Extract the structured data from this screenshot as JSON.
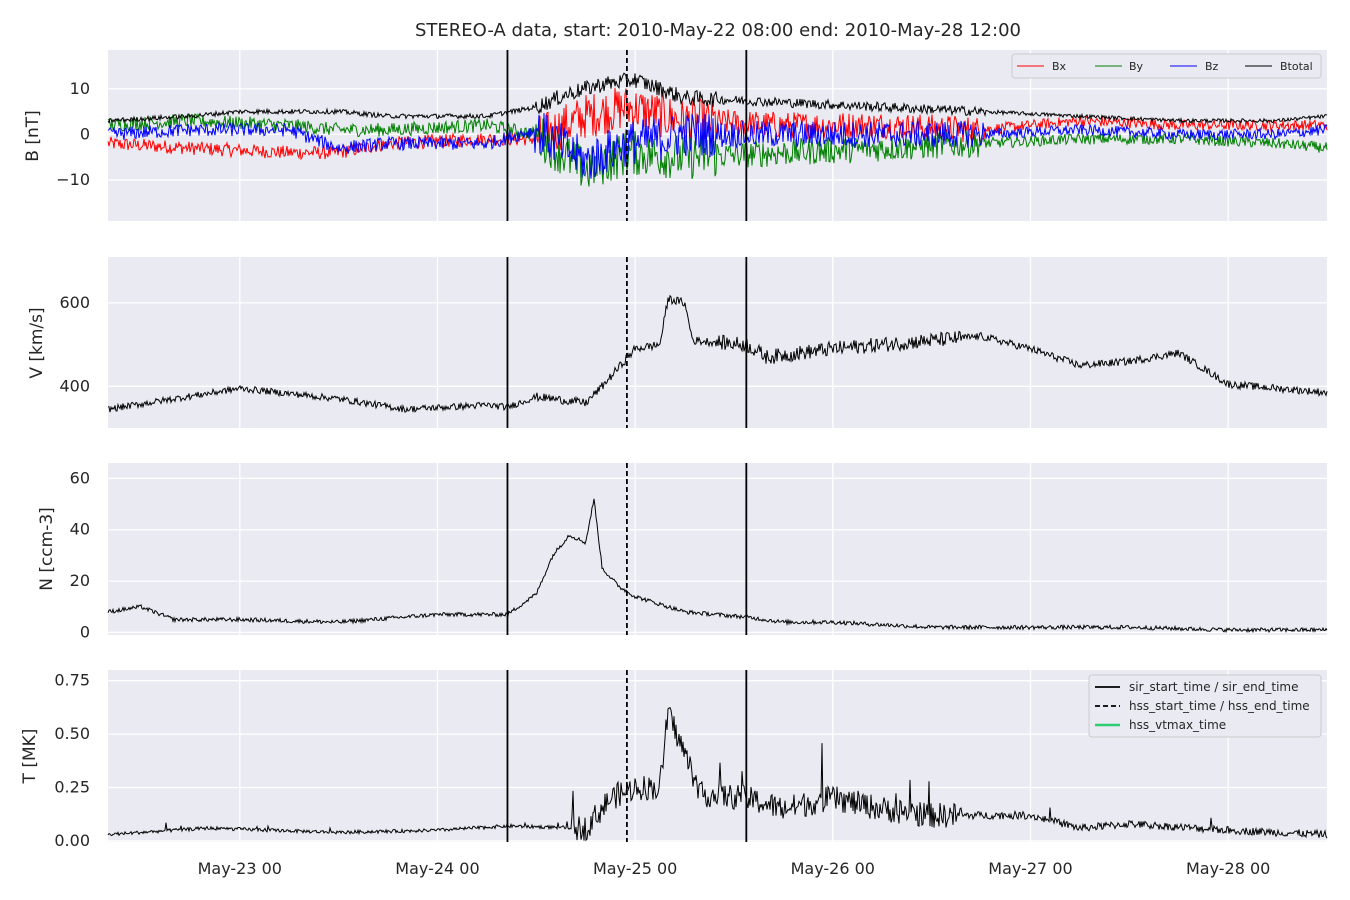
{
  "chart_data": {
    "type": "line",
    "title": "STEREO-A data, start: 2010-May-22 08:00  end: 2010-May-28 12:00",
    "x_axis": {
      "start": "2010-05-22T08:00",
      "end": "2010-05-28T12:00",
      "tick_labels": [
        "May-23 00",
        "May-24 00",
        "May-25 00",
        "May-26 00",
        "May-27 00",
        "May-28 00"
      ],
      "tick_times": [
        "2010-05-23T00:00",
        "2010-05-24T00:00",
        "2010-05-25T00:00",
        "2010-05-26T00:00",
        "2010-05-27T00:00",
        "2010-05-28T00:00"
      ]
    },
    "event_lines": {
      "sir_start_time": "2010-05-24T08:30",
      "hss_start_time": "2010-05-24T23:00",
      "sir_end_time": "2010-05-25T13:30"
    },
    "grid": true,
    "panels": [
      {
        "id": "B",
        "ylabel": "B [nT]",
        "ylim": [
          -19,
          18.5
        ],
        "yticks": [
          {
            "v": -10,
            "label": "−10"
          },
          {
            "v": 0,
            "label": "0"
          },
          {
            "v": 10,
            "label": "10"
          }
        ],
        "legend": {
          "placement": "top-right",
          "ncol": 4
        },
        "series": [
          {
            "name": "Bx",
            "color": "#ff0000",
            "x": [
              "2010-05-22T08:00",
              "2010-05-22T18:00",
              "2010-05-23T06:00",
              "2010-05-23T12:00",
              "2010-05-23T18:00",
              "2010-05-24T06:00",
              "2010-05-24T12:00",
              "2010-05-24T18:00",
              "2010-05-24T23:00",
              "2010-05-25T06:00",
              "2010-05-25T18:00",
              "2010-05-26T06:00",
              "2010-05-26T18:00",
              "2010-05-27T06:00",
              "2010-05-27T18:00",
              "2010-05-28T06:00",
              "2010-05-28T12:00"
            ],
            "y": [
              -2,
              -3,
              -4,
              -4,
              -2,
              -1,
              -1,
              4,
              6,
              3,
              2,
              2,
              1,
              3,
              2,
              2,
              2
            ]
          },
          {
            "name": "By",
            "color": "#008000",
            "x": [
              "2010-05-22T08:00",
              "2010-05-22T18:00",
              "2010-05-23T06:00",
              "2010-05-23T12:00",
              "2010-05-23T18:00",
              "2010-05-24T06:00",
              "2010-05-24T12:00",
              "2010-05-24T18:00",
              "2010-05-24T23:00",
              "2010-05-25T06:00",
              "2010-05-25T18:00",
              "2010-05-26T06:00",
              "2010-05-26T18:00",
              "2010-05-27T06:00",
              "2010-05-27T18:00",
              "2010-05-28T06:00",
              "2010-05-28T12:00"
            ],
            "y": [
              2,
              3,
              2,
              1,
              1,
              2,
              0,
              -8,
              -4,
              -5,
              -4,
              -3,
              -2,
              -1,
              -1,
              -2,
              -3
            ]
          },
          {
            "name": "Bz",
            "color": "#0000ff",
            "x": [
              "2010-05-22T08:00",
              "2010-05-22T18:00",
              "2010-05-23T06:00",
              "2010-05-23T12:00",
              "2010-05-23T18:00",
              "2010-05-24T06:00",
              "2010-05-24T12:00",
              "2010-05-24T18:00",
              "2010-05-24T23:00",
              "2010-05-25T06:00",
              "2010-05-25T18:00",
              "2010-05-26T06:00",
              "2010-05-26T18:00",
              "2010-05-27T06:00",
              "2010-05-27T18:00",
              "2010-05-28T06:00",
              "2010-05-28T12:00"
            ],
            "y": [
              0,
              1,
              1,
              -3,
              -2,
              -2,
              1,
              -6,
              -2,
              0,
              0,
              0,
              0,
              1,
              0,
              0,
              1
            ]
          },
          {
            "name": "Btotal",
            "color": "#000000",
            "x": [
              "2010-05-22T08:00",
              "2010-05-22T18:00",
              "2010-05-23T00:00",
              "2010-05-23T06:00",
              "2010-05-23T12:00",
              "2010-05-23T18:00",
              "2010-05-24T06:00",
              "2010-05-24T12:00",
              "2010-05-24T16:00",
              "2010-05-24T20:00",
              "2010-05-25T00:00",
              "2010-05-25T06:00",
              "2010-05-25T18:00",
              "2010-05-26T06:00",
              "2010-05-26T18:00",
              "2010-05-27T06:00",
              "2010-05-27T18:00",
              "2010-05-28T06:00",
              "2010-05-28T12:00"
            ],
            "y": [
              3,
              4,
              5,
              5,
              5,
              4,
              4,
              6,
              9,
              11,
              12,
              8,
              7,
              6,
              5,
              4,
              3,
              3,
              4
            ]
          }
        ]
      },
      {
        "id": "V",
        "ylabel": "V [km/s]",
        "ylim": [
          300,
          710
        ],
        "yticks": [
          {
            "v": 400,
            "label": "400"
          },
          {
            "v": 600,
            "label": "600"
          }
        ],
        "series": [
          {
            "name": "",
            "color": "#000000",
            "x": [
              "2010-05-22T08:00",
              "2010-05-22T16:00",
              "2010-05-23T00:00",
              "2010-05-23T12:00",
              "2010-05-23T20:00",
              "2010-05-24T06:00",
              "2010-05-24T08:30",
              "2010-05-24T12:00",
              "2010-05-24T18:00",
              "2010-05-24T20:00",
              "2010-05-25T00:00",
              "2010-05-25T03:00",
              "2010-05-25T04:00",
              "2010-05-25T06:00",
              "2010-05-25T07:00",
              "2010-05-25T13:30",
              "2010-05-25T16:00",
              "2010-05-26T00:00",
              "2010-05-26T12:00",
              "2010-05-26T18:00",
              "2010-05-27T00:00",
              "2010-05-27T06:00",
              "2010-05-27T12:00",
              "2010-05-27T18:00",
              "2010-05-27T22:00",
              "2010-05-28T00:00",
              "2010-05-28T12:00"
            ],
            "y": [
              345,
              370,
              395,
              370,
              345,
              355,
              350,
              375,
              360,
              400,
              490,
              500,
              610,
              600,
              510,
              500,
              470,
              490,
              510,
              520,
              490,
              450,
              460,
              480,
              430,
              405,
              385
            ]
          }
        ]
      },
      {
        "id": "N",
        "ylabel": "N [ccm-3]",
        "ylim": [
          -1,
          66
        ],
        "yticks": [
          {
            "v": 0,
            "label": "0"
          },
          {
            "v": 20,
            "label": "20"
          },
          {
            "v": 40,
            "label": "40"
          },
          {
            "v": 60,
            "label": "60"
          }
        ],
        "series": [
          {
            "name": "",
            "color": "#000000",
            "x": [
              "2010-05-22T08:00",
              "2010-05-22T12:00",
              "2010-05-22T16:00",
              "2010-05-23T00:00",
              "2010-05-23T12:00",
              "2010-05-24T00:00",
              "2010-05-24T08:30",
              "2010-05-24T12:00",
              "2010-05-24T14:00",
              "2010-05-24T16:00",
              "2010-05-24T18:00",
              "2010-05-24T19:00",
              "2010-05-24T20:00",
              "2010-05-24T22:00",
              "2010-05-25T00:00",
              "2010-05-25T06:00",
              "2010-05-25T13:30",
              "2010-05-25T18:00",
              "2010-05-26T00:00",
              "2010-05-26T06:00",
              "2010-05-26T12:00",
              "2010-05-27T00:00",
              "2010-05-27T12:00",
              "2010-05-28T00:00",
              "2010-05-28T12:00"
            ],
            "y": [
              8,
              10,
              5,
              5,
              4,
              7,
              7,
              15,
              30,
              38,
              35,
              52,
              25,
              18,
              14,
              8,
              6,
              4,
              4,
              3,
              2,
              2,
              2,
              1,
              1
            ]
          }
        ]
      },
      {
        "id": "T",
        "ylabel": "T [MK]",
        "ylim": [
          -0.005,
          0.8
        ],
        "yticks": [
          {
            "v": 0,
            "label": "0.00"
          },
          {
            "v": 0.25,
            "label": "0.25"
          },
          {
            "v": 0.5,
            "label": "0.50"
          },
          {
            "v": 0.75,
            "label": "0.75"
          }
        ],
        "legend": {
          "placement": "top-right",
          "entries": [
            {
              "label": "sir_start_time / sir_end_time",
              "color": "#000000",
              "style": "solid"
            },
            {
              "label": "hss_start_time / hss_end_time",
              "color": "#000000",
              "style": "dashed"
            },
            {
              "label": "hss_vtmax_time",
              "color": "#2ecc71",
              "style": "solid"
            }
          ]
        },
        "series": [
          {
            "name": "",
            "color": "#000000",
            "x": [
              "2010-05-22T08:00",
              "2010-05-22T20:00",
              "2010-05-23T12:00",
              "2010-05-24T00:00",
              "2010-05-24T08:30",
              "2010-05-24T18:00",
              "2010-05-24T21:00",
              "2010-05-25T00:00",
              "2010-05-25T03:00",
              "2010-05-25T04:00",
              "2010-05-25T08:00",
              "2010-05-25T13:30",
              "2010-05-25T18:00",
              "2010-05-26T00:00",
              "2010-05-26T06:00",
              "2010-05-26T12:00",
              "2010-05-27T00:00",
              "2010-05-27T06:00",
              "2010-05-27T12:00",
              "2010-05-28T00:00",
              "2010-05-28T12:00"
            ],
            "y": [
              0.03,
              0.06,
              0.04,
              0.05,
              0.07,
              0.06,
              0.2,
              0.25,
              0.25,
              0.6,
              0.22,
              0.2,
              0.15,
              0.2,
              0.15,
              0.12,
              0.12,
              0.06,
              0.08,
              0.05,
              0.03
            ]
          }
        ]
      }
    ]
  }
}
